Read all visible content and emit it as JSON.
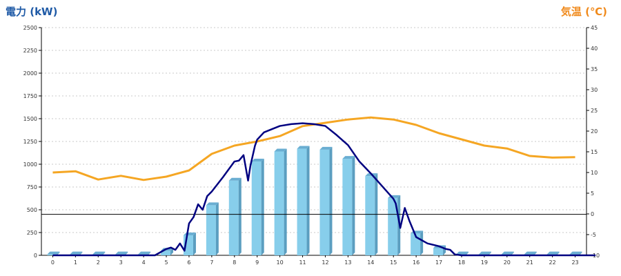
{
  "chart_data": {
    "type": "bar",
    "ylabel_left": "電力 (kW)",
    "ylabel_right": "気温 (℃)",
    "categories": [
      "0",
      "1",
      "2",
      "3",
      "4",
      "5",
      "6",
      "7",
      "8",
      "9",
      "10",
      "11",
      "12",
      "13",
      "14",
      "15",
      "16",
      "17",
      "18",
      "19",
      "20",
      "21",
      "22",
      "23"
    ],
    "left_axis": {
      "min": 0,
      "max": 2500,
      "ticks": [
        0,
        250,
        500,
        750,
        1000,
        1250,
        1500,
        1750,
        2000,
        2250,
        2500
      ]
    },
    "right_axis": {
      "min": -10,
      "max": 45,
      "ticks": [
        -10,
        -5,
        0,
        5,
        10,
        15,
        20,
        25,
        30,
        35,
        40,
        45
      ]
    },
    "grid": true,
    "series": [
      {
        "kind": "bar",
        "axis": "left",
        "color": "#87ceeb",
        "values": [
          10,
          10,
          10,
          10,
          10,
          50,
          220,
          550,
          820,
          1030,
          1140,
          1170,
          1160,
          1060,
          870,
          630,
          240,
          80,
          10,
          10,
          10,
          10,
          10,
          10
        ]
      },
      {
        "kind": "line",
        "axis": "left",
        "color": "#000080",
        "x": [
          0,
          4.5,
          5,
          5.2,
          5.4,
          5.6,
          5.8,
          6.0,
          6.2,
          6.4,
          6.6,
          6.8,
          7,
          7.5,
          8,
          8.2,
          8.4,
          8.6,
          8.7,
          8.9,
          9,
          9.3,
          9.6,
          10,
          10.5,
          11,
          11.5,
          12,
          12.5,
          13,
          13.5,
          14,
          14.5,
          15,
          15.1,
          15.3,
          15.5,
          15.7,
          16,
          16.5,
          17,
          17.3,
          17.5,
          17.7,
          18,
          23.9
        ],
        "y": [
          0,
          0,
          70,
          85,
          60,
          130,
          50,
          350,
          420,
          560,
          500,
          650,
          700,
          860,
          1030,
          1040,
          1100,
          820,
          980,
          1200,
          1270,
          1350,
          1380,
          1420,
          1440,
          1450,
          1440,
          1420,
          1320,
          1210,
          1030,
          900,
          760,
          620,
          570,
          300,
          520,
          380,
          200,
          130,
          100,
          70,
          60,
          10,
          0,
          0
        ]
      },
      {
        "kind": "line",
        "axis": "right",
        "color": "#f5a623",
        "x": [
          0,
          1,
          2,
          3,
          4,
          5,
          6,
          7,
          8,
          9,
          10,
          11,
          12,
          13,
          14,
          15,
          16,
          17,
          18,
          19,
          20,
          21,
          22,
          23
        ],
        "y": [
          10.0,
          10.3,
          8.3,
          9.2,
          8.2,
          9.0,
          10.5,
          14.5,
          16.5,
          17.5,
          18.8,
          21.2,
          22.0,
          22.8,
          23.3,
          22.8,
          21.5,
          19.5,
          18.0,
          16.5,
          15.8,
          14.0,
          13.6,
          13.7
        ]
      },
      {
        "kind": "hline",
        "axis": "left",
        "color": "#000000",
        "value": 450
      }
    ]
  }
}
